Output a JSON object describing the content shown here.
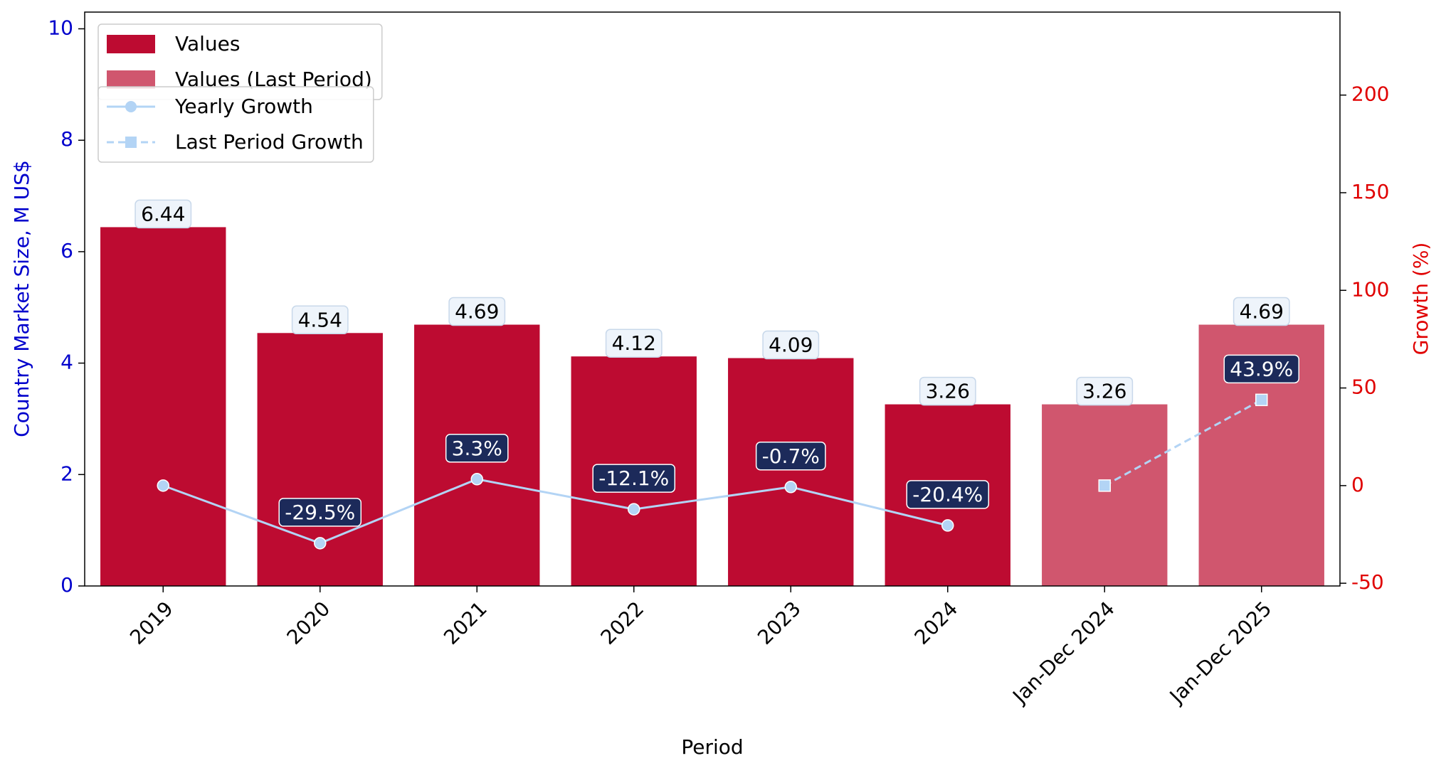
{
  "chart_data": {
    "type": "bar",
    "categories": [
      "2019",
      "2020",
      "2021",
      "2022",
      "2023",
      "2024",
      "Jan-Dec 2024",
      "Jan-Dec 2025"
    ],
    "series": [
      {
        "name": "Values",
        "type": "bar",
        "color": "#bd0b31",
        "values": [
          6.44,
          4.54,
          4.69,
          4.12,
          4.09,
          3.26,
          null,
          null
        ]
      },
      {
        "name": "Values (Last Period)",
        "type": "bar",
        "color": "#d0566e",
        "values": [
          null,
          null,
          null,
          null,
          null,
          null,
          3.26,
          4.69
        ]
      },
      {
        "name": "Yearly Growth",
        "type": "line",
        "axis": "y2",
        "color": "#b3d4f5",
        "marker": "circle",
        "dashed": false,
        "values": [
          0,
          -29.5,
          3.3,
          -12.1,
          -0.7,
          -20.4,
          null,
          null
        ],
        "value_labels": [
          null,
          "-29.5%",
          "3.3%",
          "-12.1%",
          "-0.7%",
          "-20.4%",
          null,
          null
        ]
      },
      {
        "name": "Last Period Growth",
        "type": "line",
        "axis": "y2",
        "color": "#b3d4f5",
        "marker": "square",
        "dashed": true,
        "values": [
          null,
          null,
          null,
          null,
          null,
          null,
          0,
          43.9
        ],
        "value_labels": [
          null,
          null,
          null,
          null,
          null,
          null,
          null,
          "43.9%"
        ]
      }
    ],
    "xlabel": "Period",
    "ylabel": "Country Market Size, M US$",
    "y2label": "Growth (%)",
    "ylim": [
      0,
      10.3
    ],
    "yticks": [
      0,
      2,
      4,
      6,
      8,
      10
    ],
    "y2lim": [
      -51.4,
      242.5
    ],
    "y2ticks": [
      -50,
      0,
      50,
      100,
      150,
      200
    ],
    "ycolor": "#0000cc",
    "y2color": "#e00000",
    "legend": "upper left",
    "grid": false
  }
}
